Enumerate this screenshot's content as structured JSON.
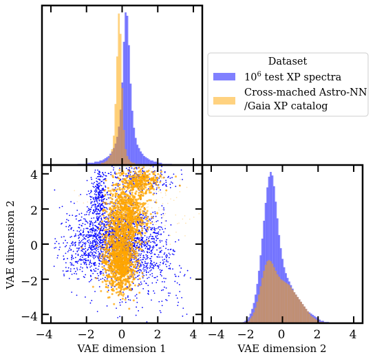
{
  "chart_data": [
    {
      "panel": "top-left",
      "type": "histogram",
      "variable": "VAE dimension 1",
      "xlim": [
        -4.5,
        4.5
      ],
      "bin_width": 0.12,
      "series": [
        {
          "name": "10^6 test XP spectra",
          "color": "#0000ff",
          "alpha": 0.5,
          "center": 0.12,
          "sigma": 0.35,
          "tail": 1.05,
          "tail_weight": 0.45
        },
        {
          "name": "Cross-mached Astro-NN /Gaia XP catalog",
          "color": "#ffa500",
          "alpha": 0.5,
          "center": -0.05,
          "sigma": 0.26,
          "tail": 0.55,
          "tail_weight": 0.25
        }
      ],
      "counts": {
        "test": [
          0,
          0,
          0,
          0,
          0,
          0,
          0,
          0,
          0,
          0,
          0,
          0,
          0,
          0,
          0,
          0,
          0,
          0,
          0,
          0,
          0,
          1,
          1,
          1,
          1,
          1,
          1,
          2,
          2,
          2,
          2,
          3,
          3,
          3,
          4,
          4,
          5,
          6,
          7,
          8,
          10,
          12,
          15,
          19,
          25,
          34,
          49,
          73,
          109,
          135,
          132,
          106,
          72,
          48,
          33,
          24,
          18,
          15,
          12,
          10,
          8,
          7,
          6,
          5,
          4,
          4,
          3,
          3,
          2,
          2,
          2,
          1,
          1,
          1,
          1,
          1,
          1,
          0,
          0,
          0,
          0,
          0,
          0,
          0,
          0,
          0,
          0,
          0,
          0,
          0,
          0,
          0,
          0,
          0,
          0
        ],
        "astro": [
          0,
          0,
          0,
          0,
          0,
          0,
          0,
          0,
          0,
          0,
          0,
          0,
          0,
          0,
          0,
          0,
          0,
          0,
          0,
          0,
          0,
          0,
          0,
          0,
          0,
          0,
          0,
          0,
          0,
          0,
          0,
          0,
          1,
          1,
          1,
          2,
          2,
          3,
          4,
          6,
          9,
          14,
          26,
          54,
          96,
          134,
          116,
          68,
          31,
          14,
          8,
          5,
          3,
          2,
          2,
          1,
          1,
          1,
          0,
          0,
          0,
          0,
          0,
          0,
          0,
          0,
          0,
          0,
          0,
          0,
          0,
          0,
          0,
          0,
          0,
          0,
          0,
          0,
          0,
          0,
          0,
          0,
          0,
          0,
          0,
          0,
          0,
          0,
          0,
          0,
          0,
          0,
          0,
          0,
          0
        ]
      }
    },
    {
      "panel": "bottom-right",
      "type": "histogram",
      "variable": "VAE dimension 2",
      "xlim": [
        -4.5,
        4.5
      ],
      "xticks": [
        -4,
        -2,
        0,
        2,
        4
      ],
      "xlabel": "VAE dimension 2",
      "counts": {
        "test": [
          0,
          0,
          0,
          0,
          0,
          0,
          0,
          0,
          0,
          0,
          0,
          0,
          0,
          0,
          0,
          0,
          0,
          0,
          0,
          0,
          0,
          0,
          0,
          0,
          1,
          2,
          3,
          5,
          8,
          12,
          17,
          24,
          33,
          44,
          57,
          71,
          86,
          101,
          114,
          123,
          127,
          124,
          115,
          102,
          88,
          74,
          63,
          54,
          47,
          42,
          38,
          35,
          32,
          29,
          26,
          24,
          22,
          20,
          18,
          16,
          14,
          12,
          10,
          9,
          8,
          7,
          6,
          5,
          4,
          3,
          2,
          2,
          1,
          1,
          1,
          0,
          0,
          0,
          0,
          0,
          0,
          0,
          0,
          0,
          0,
          0,
          0,
          0,
          0,
          0,
          0,
          0,
          0,
          0,
          0
        ],
        "astro": [
          0,
          0,
          0,
          0,
          0,
          0,
          0,
          0,
          0,
          0,
          0,
          0,
          0,
          0,
          0,
          0,
          0,
          0,
          0,
          0,
          0,
          0,
          0,
          0,
          0,
          1,
          1,
          2,
          4,
          6,
          9,
          13,
          18,
          24,
          31,
          38,
          44,
          49,
          52,
          53,
          52,
          50,
          47,
          44,
          41,
          39,
          37,
          36,
          35,
          34,
          33,
          32,
          30,
          28,
          26,
          24,
          22,
          20,
          18,
          16,
          14,
          12,
          10,
          8,
          6,
          5,
          4,
          3,
          2,
          1,
          1,
          1,
          0,
          0,
          0,
          0,
          0,
          0,
          0,
          0,
          0,
          0,
          0,
          0,
          0,
          0,
          0,
          0,
          0,
          0,
          0,
          0,
          0,
          0,
          0
        ]
      }
    },
    {
      "panel": "bottom-left",
      "type": "scatter",
      "xlabel": "VAE dimension 1",
      "ylabel": "VAE dimension 2",
      "xlim": [
        -4.5,
        4.5
      ],
      "ylim": [
        -4.5,
        4.5
      ],
      "xticks": [
        -4,
        -2,
        0,
        2,
        4
      ],
      "yticks": [
        -4,
        -2,
        0,
        2,
        4
      ],
      "series": [
        {
          "name": "10^6 test XP spectra",
          "color": "#0000ff"
        },
        {
          "name": "Cross-mached Astro-NN /Gaia XP catalog",
          "color": "#ffa500"
        }
      ]
    }
  ],
  "legend": {
    "title": "Dataset",
    "placement": "upper-right panel",
    "entries": [
      {
        "label_base": "10",
        "label_sup": "6",
        "label_rest": " test XP spectra",
        "color": "#8080ff"
      },
      {
        "label_line1": "Cross-mached Astro-NN",
        "label_line2": "/Gaia XP catalog",
        "color": "#ffd280"
      }
    ]
  },
  "tick_labels": [
    "−4",
    "−2",
    "0",
    "2",
    "4"
  ]
}
